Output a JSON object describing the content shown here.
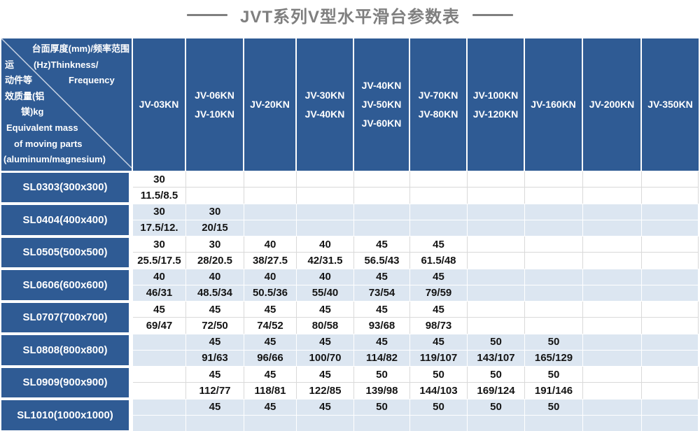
{
  "title": "JVT系列V型水平滑台参数表",
  "colors": {
    "header_bg": "#2f5b94",
    "row_alt_bg": "#dce6f1",
    "title_color": "#7f7f7f",
    "gridline": "#d9d9d9"
  },
  "table": {
    "corner": {
      "lines": [
        [
          "台面厚度(mm)/频率范围"
        ],
        [
          "运",
          "(Hz)Thinkness/"
        ],
        [
          "动件等",
          "Frequency"
        ],
        [
          "效质量(铝"
        ],
        [
          "镁)kg"
        ],
        [
          "Equivalent mass"
        ],
        [
          "of moving parts"
        ],
        [
          "(aluminum/magnesium)"
        ]
      ]
    },
    "columns": [
      {
        "lines": [
          "JV-03KN"
        ]
      },
      {
        "lines": [
          "JV-06KN",
          "JV-10KN"
        ]
      },
      {
        "lines": [
          "JV-20KN"
        ]
      },
      {
        "lines": [
          "JV-30KN",
          "JV-40KN"
        ]
      },
      {
        "lines": [
          "JV-40KN",
          "JV-50KN",
          "JV-60KN"
        ]
      },
      {
        "lines": [
          "JV-70KN",
          "JV-80KN"
        ]
      },
      {
        "lines": [
          "JV-100KN",
          "JV-120KN"
        ]
      },
      {
        "lines": [
          "JV-160KN"
        ]
      },
      {
        "lines": [
          "JV-200KN"
        ]
      },
      {
        "lines": [
          "JV-350KN"
        ]
      }
    ],
    "rows": [
      {
        "label": "SL0303(300x300)",
        "cells": [
          [
            "30",
            "11.5/8.5"
          ],
          null,
          null,
          null,
          null,
          null,
          null,
          null,
          null,
          null
        ]
      },
      {
        "label": "SL0404(400x400)",
        "cells": [
          [
            "30",
            "17.5/12."
          ],
          [
            "30",
            "20/15"
          ],
          null,
          null,
          null,
          null,
          null,
          null,
          null,
          null
        ]
      },
      {
        "label": "SL0505(500x500)",
        "cells": [
          [
            "30",
            "25.5/17.5"
          ],
          [
            "30",
            "28/20.5"
          ],
          [
            "40",
            "38/27.5"
          ],
          [
            "40",
            "42/31.5"
          ],
          [
            "45",
            "56.5/43"
          ],
          [
            "45",
            "61.5/48"
          ],
          null,
          null,
          null,
          null
        ]
      },
      {
        "label": "SL0606(600x600)",
        "cells": [
          [
            "40",
            "46/31"
          ],
          [
            "40",
            "48.5/34"
          ],
          [
            "40",
            "50.5/36"
          ],
          [
            "40",
            "55/40"
          ],
          [
            "45",
            "73/54"
          ],
          [
            "45",
            "79/59"
          ],
          null,
          null,
          null,
          null
        ]
      },
      {
        "label": "SL0707(700x700)",
        "cells": [
          [
            "45",
            "69/47"
          ],
          [
            "45",
            "72/50"
          ],
          [
            "45",
            "74/52"
          ],
          [
            "45",
            "80/58"
          ],
          [
            "45",
            "93/68"
          ],
          [
            "45",
            "98/73"
          ],
          null,
          null,
          null,
          null
        ]
      },
      {
        "label": "SL0808(800x800)",
        "cells": [
          null,
          [
            "45",
            "91/63"
          ],
          [
            "45",
            "96/66"
          ],
          [
            "45",
            "100/70"
          ],
          [
            "45",
            "114/82"
          ],
          [
            "45",
            "119/107"
          ],
          [
            "50",
            "143/107"
          ],
          [
            "50",
            "165/129"
          ],
          null,
          null
        ]
      },
      {
        "label": "SL0909(900x900)",
        "cells": [
          null,
          [
            "45",
            "112/77"
          ],
          [
            "45",
            "118/81"
          ],
          [
            "45",
            "122/85"
          ],
          [
            "50",
            "139/98"
          ],
          [
            "50",
            "144/103"
          ],
          [
            "50",
            "169/124"
          ],
          [
            "50",
            "191/146"
          ],
          null,
          null
        ]
      },
      {
        "label": "SL1010(1000x1000)",
        "cells": [
          null,
          [
            "45",
            ""
          ],
          [
            "45",
            ""
          ],
          [
            "45",
            ""
          ],
          [
            "50",
            ""
          ],
          [
            "50",
            ""
          ],
          [
            "50",
            ""
          ],
          [
            "50",
            ""
          ],
          null,
          null
        ]
      }
    ]
  }
}
